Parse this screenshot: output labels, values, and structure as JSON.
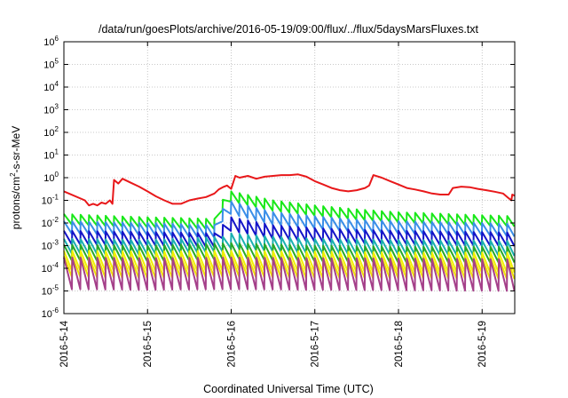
{
  "chart_data": {
    "type": "line",
    "title": "/data/run/goesPlots/archive/2016-05-19/09:00/flux/../flux/5daysMarsFluxes.txt",
    "xlabel": "Coordinated Universal Time (UTC)",
    "ylabel": {
      "pre": "protons/cm",
      "sup": "2",
      "post": "-s-sr-MeV"
    },
    "x_domain_days": [
      0,
      5.39
    ],
    "x_ticks": [
      {
        "day": 0,
        "label": "2016-5-14"
      },
      {
        "day": 1,
        "label": "2016-5-15"
      },
      {
        "day": 2,
        "label": "2016-5-16"
      },
      {
        "day": 3,
        "label": "2016-5-17"
      },
      {
        "day": 4,
        "label": "2016-5-18"
      },
      {
        "day": 5,
        "label": "2016-5-19"
      }
    ],
    "y_scale": "log",
    "ylim": [
      1e-06,
      1000000.0
    ],
    "y_ticks": [
      {
        "exp": -6
      },
      {
        "exp": -5
      },
      {
        "exp": -4
      },
      {
        "exp": -3
      },
      {
        "exp": -2
      },
      {
        "exp": -1
      },
      {
        "exp": 0
      },
      {
        "exp": 1
      },
      {
        "exp": 2
      },
      {
        "exp": 3
      },
      {
        "exp": 4
      },
      {
        "exp": 5
      },
      {
        "exp": 6
      }
    ],
    "y_tick_base": "10",
    "grid": true,
    "sawtooth_period_days": 0.1,
    "series": [
      {
        "color": "#e8181a",
        "points": [
          [
            0.0,
            0.25
          ],
          [
            0.25,
            0.1
          ],
          [
            0.3,
            0.06
          ],
          [
            0.35,
            0.07
          ],
          [
            0.4,
            0.06
          ],
          [
            0.45,
            0.08
          ],
          [
            0.5,
            0.07
          ],
          [
            0.55,
            0.1
          ],
          [
            0.58,
            0.07
          ],
          [
            0.6,
            0.8
          ],
          [
            0.65,
            0.55
          ],
          [
            0.7,
            0.9
          ],
          [
            0.8,
            0.6
          ],
          [
            0.9,
            0.4
          ],
          [
            1.0,
            0.25
          ],
          [
            1.1,
            0.15
          ],
          [
            1.2,
            0.1
          ],
          [
            1.3,
            0.07
          ],
          [
            1.4,
            0.07
          ],
          [
            1.5,
            0.1
          ],
          [
            1.6,
            0.12
          ],
          [
            1.7,
            0.14
          ],
          [
            1.8,
            0.2
          ],
          [
            1.85,
            0.3
          ],
          [
            1.9,
            0.38
          ],
          [
            1.95,
            0.45
          ],
          [
            2.0,
            0.32
          ],
          [
            2.05,
            1.2
          ],
          [
            2.1,
            1.0
          ],
          [
            2.2,
            1.2
          ],
          [
            2.3,
            0.9
          ],
          [
            2.4,
            1.1
          ],
          [
            2.5,
            1.2
          ],
          [
            2.6,
            1.3
          ],
          [
            2.7,
            1.3
          ],
          [
            2.8,
            1.4
          ],
          [
            2.9,
            1.1
          ],
          [
            3.0,
            0.7
          ],
          [
            3.1,
            0.5
          ],
          [
            3.2,
            0.35
          ],
          [
            3.3,
            0.28
          ],
          [
            3.4,
            0.25
          ],
          [
            3.5,
            0.28
          ],
          [
            3.6,
            0.35
          ],
          [
            3.65,
            0.45
          ],
          [
            3.7,
            1.3
          ],
          [
            3.8,
            1.0
          ],
          [
            3.9,
            0.7
          ],
          [
            4.0,
            0.5
          ],
          [
            4.1,
            0.35
          ],
          [
            4.2,
            0.3
          ],
          [
            4.3,
            0.25
          ],
          [
            4.4,
            0.2
          ],
          [
            4.5,
            0.18
          ],
          [
            4.6,
            0.18
          ],
          [
            4.65,
            0.35
          ],
          [
            4.75,
            0.4
          ],
          [
            4.85,
            0.38
          ],
          [
            4.95,
            0.32
          ],
          [
            5.05,
            0.28
          ],
          [
            5.15,
            0.24
          ],
          [
            5.25,
            0.2
          ],
          [
            5.3,
            0.14
          ],
          [
            5.35,
            0.1
          ],
          [
            5.36,
            0.18
          ],
          [
            5.39,
            0.16
          ]
        ]
      },
      {
        "color": "#18e818",
        "points": [
          [
            0.0,
            0.025
          ],
          [
            0.6,
            0.02
          ],
          [
            1.0,
            0.018
          ],
          [
            1.85,
            0.015
          ],
          [
            1.88,
            0.07
          ],
          [
            1.95,
            0.3
          ],
          [
            2.0,
            0.25
          ],
          [
            2.5,
            0.1
          ],
          [
            3.0,
            0.06
          ],
          [
            3.5,
            0.04
          ],
          [
            4.0,
            0.03
          ],
          [
            4.6,
            0.025
          ],
          [
            5.0,
            0.022
          ],
          [
            5.39,
            0.02
          ]
        ],
        "dip": 0.35
      },
      {
        "color": "#3a8ee8",
        "points": [
          [
            0.0,
            0.012
          ],
          [
            1.0,
            0.01
          ],
          [
            1.85,
            0.008
          ],
          [
            1.88,
            0.03
          ],
          [
            1.95,
            0.1
          ],
          [
            2.0,
            0.09
          ],
          [
            2.5,
            0.03
          ],
          [
            3.0,
            0.02
          ],
          [
            3.5,
            0.014
          ],
          [
            4.0,
            0.012
          ],
          [
            5.0,
            0.01
          ],
          [
            5.39,
            0.009
          ]
        ],
        "dip": 0.28
      },
      {
        "color": "#1414c8",
        "points": [
          [
            0.0,
            0.0045
          ],
          [
            1.0,
            0.004
          ],
          [
            1.85,
            0.0035
          ],
          [
            1.95,
            0.02
          ],
          [
            2.0,
            0.018
          ],
          [
            2.5,
            0.008
          ],
          [
            3.0,
            0.006
          ],
          [
            3.5,
            0.005
          ],
          [
            4.0,
            0.0045
          ],
          [
            5.39,
            0.0038
          ]
        ],
        "dip": 0.25
      },
      {
        "color": "#1ab0b0",
        "points": [
          [
            0.0,
            0.002
          ],
          [
            1.0,
            0.0018
          ],
          [
            1.95,
            0.0025
          ],
          [
            2.0,
            0.0035
          ],
          [
            2.5,
            0.0025
          ],
          [
            3.0,
            0.002
          ],
          [
            4.0,
            0.0018
          ],
          [
            5.39,
            0.0016
          ]
        ],
        "dip": 0.22
      },
      {
        "color": "#28a828",
        "points": [
          [
            0.0,
            0.0011
          ],
          [
            1.0,
            0.001
          ],
          [
            2.0,
            0.0013
          ],
          [
            3.0,
            0.001
          ],
          [
            4.0,
            0.0009
          ],
          [
            5.39,
            0.0009
          ]
        ],
        "dip": 0.2
      },
      {
        "color": "#f0f000",
        "points": [
          [
            0.0,
            0.0006
          ],
          [
            1.0,
            0.00055
          ],
          [
            2.0,
            0.0006
          ],
          [
            3.0,
            0.00055
          ],
          [
            4.0,
            0.0005
          ],
          [
            5.39,
            0.0005
          ]
        ],
        "dip": 0.13
      },
      {
        "color": "#f0e000",
        "points": [
          [
            0.0,
            0.00035
          ],
          [
            1.0,
            0.0003
          ],
          [
            2.0,
            0.00035
          ],
          [
            3.0,
            0.0003
          ],
          [
            4.0,
            0.0003
          ],
          [
            5.39,
            0.00028
          ]
        ],
        "dip": 0.12
      },
      {
        "color": "#a5408a",
        "points": [
          [
            0.0,
            0.0003
          ],
          [
            1.0,
            0.00028
          ],
          [
            2.0,
            0.0003
          ],
          [
            3.0,
            0.00028
          ],
          [
            4.0,
            0.00027
          ],
          [
            5.39,
            0.00025
          ]
        ],
        "dip": 0.04
      }
    ]
  }
}
